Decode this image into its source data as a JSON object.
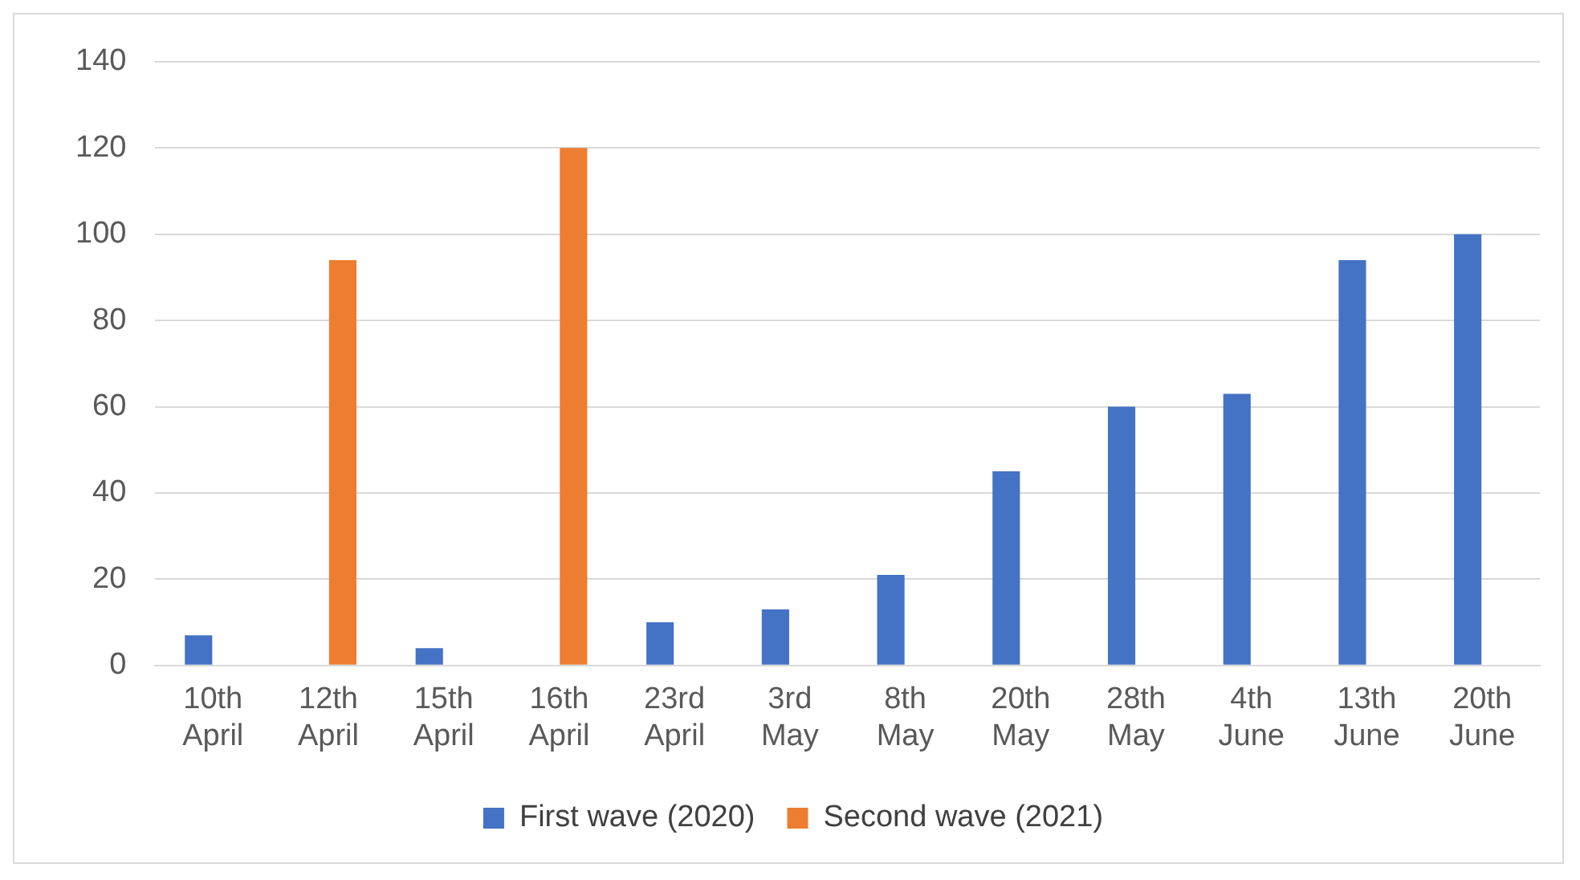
{
  "chart_data": {
    "type": "bar",
    "categories": [
      "10th April",
      "12th April",
      "15th April",
      "16th April",
      "23rd April",
      "3rd May",
      "8th May",
      "20th May",
      "28th May",
      "4th June",
      "13th June",
      "20th June"
    ],
    "series": [
      {
        "name": "First wave (2020)",
        "color": "#4472c4",
        "values": [
          7,
          null,
          4,
          null,
          10,
          13,
          21,
          45,
          60,
          63,
          94,
          100
        ]
      },
      {
        "name": "Second wave (2021)",
        "color": "#ed7d31",
        "values": [
          null,
          94,
          null,
          120,
          null,
          null,
          null,
          null,
          null,
          null,
          null,
          null
        ]
      }
    ],
    "ylim": [
      0,
      140
    ],
    "yticks": [
      0,
      20,
      40,
      60,
      80,
      100,
      120,
      140
    ],
    "grid": "y",
    "legend": "bottom"
  }
}
